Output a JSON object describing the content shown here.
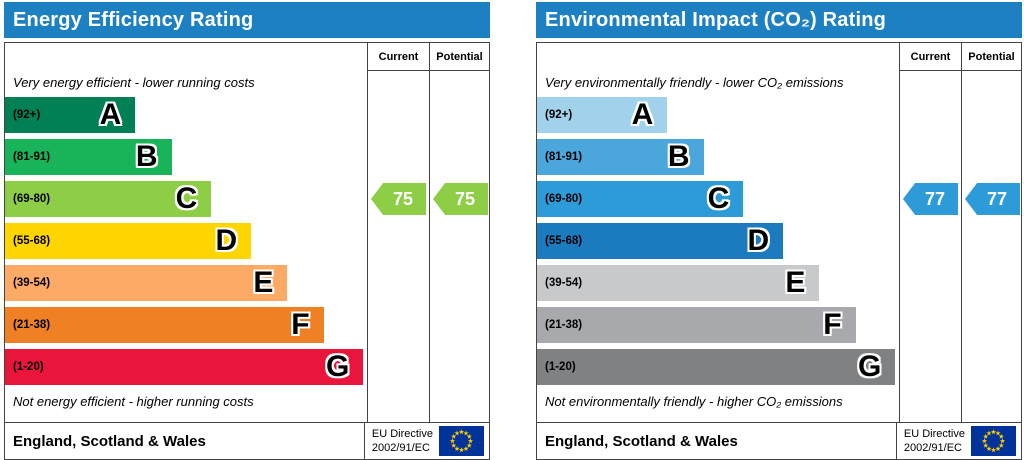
{
  "header_color": "#1d80c3",
  "chart_data": [
    {
      "type": "bar",
      "variant": "epc-rating",
      "title": "Energy Efficiency Rating",
      "columns": [
        "Current",
        "Potential"
      ],
      "top_note": "Very energy efficient - lower running costs",
      "bottom_note": "Not energy efficient - higher running costs",
      "bands": [
        {
          "range": "(92+)",
          "letter": "A",
          "color": "#008054",
          "width_pct": 36
        },
        {
          "range": "(81-91)",
          "letter": "B",
          "color": "#19b459",
          "width_pct": 46
        },
        {
          "range": "(69-80)",
          "letter": "C",
          "color": "#8dce46",
          "width_pct": 57
        },
        {
          "range": "(55-68)",
          "letter": "D",
          "color": "#ffd500",
          "width_pct": 68
        },
        {
          "range": "(39-54)",
          "letter": "E",
          "color": "#fcaa65",
          "width_pct": 78
        },
        {
          "range": "(21-38)",
          "letter": "F",
          "color": "#ef8023",
          "width_pct": 88
        },
        {
          "range": "(1-20)",
          "letter": "G",
          "color": "#e9153b",
          "width_pct": 99
        }
      ],
      "current": {
        "value": 75,
        "band": "C",
        "band_index": 2,
        "color": "#8dce46"
      },
      "potential": {
        "value": 75,
        "band": "C",
        "band_index": 2,
        "color": "#8dce46"
      },
      "footer": {
        "region": "England, Scotland & Wales",
        "directive_line1": "EU Directive",
        "directive_line2": "2002/91/EC"
      }
    },
    {
      "type": "bar",
      "variant": "epc-rating",
      "title": "Environmental Impact (CO₂) Rating",
      "columns": [
        "Current",
        "Potential"
      ],
      "top_note": "Very environmentally friendly - lower CO₂ emissions",
      "bottom_note": "Not environmentally friendly - higher CO₂ emissions",
      "bands": [
        {
          "range": "(92+)",
          "letter": "A",
          "color": "#a2d1ec",
          "width_pct": 36
        },
        {
          "range": "(81-91)",
          "letter": "B",
          "color": "#4aa6db",
          "width_pct": 46
        },
        {
          "range": "(69-80)",
          "letter": "C",
          "color": "#2d9bd8",
          "width_pct": 57
        },
        {
          "range": "(55-68)",
          "letter": "D",
          "color": "#1c7bbf",
          "width_pct": 68
        },
        {
          "range": "(39-54)",
          "letter": "E",
          "color": "#c8c9cb",
          "width_pct": 78
        },
        {
          "range": "(21-38)",
          "letter": "F",
          "color": "#a7a9ac",
          "width_pct": 88
        },
        {
          "range": "(1-20)",
          "letter": "G",
          "color": "#7f8183",
          "width_pct": 99
        }
      ],
      "current": {
        "value": 77,
        "band": "C",
        "band_index": 2,
        "color": "#2d9bd8"
      },
      "potential": {
        "value": 77,
        "band": "C",
        "band_index": 2,
        "color": "#2d9bd8"
      },
      "footer": {
        "region": "England, Scotland & Wales",
        "directive_line1": "EU Directive",
        "directive_line2": "2002/91/EC"
      }
    }
  ]
}
